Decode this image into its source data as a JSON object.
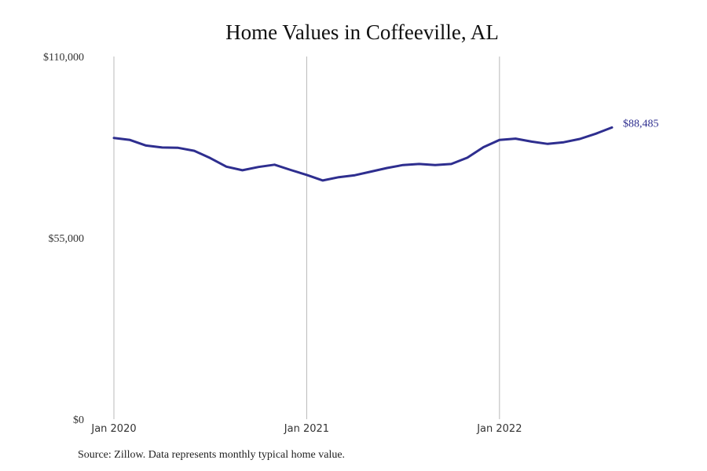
{
  "chart_data": {
    "type": "line",
    "title": "Home Values in Coffeeville, AL",
    "xlabel": "",
    "ylabel": "",
    "ylim": [
      0,
      110000
    ],
    "y_ticks": [
      {
        "value": 0,
        "label": "$0"
      },
      {
        "value": 55000,
        "label": "$55,000"
      },
      {
        "value": 110000,
        "label": "$110,000"
      }
    ],
    "x_ticks": [
      {
        "index": 0,
        "label": "Jan 2020"
      },
      {
        "index": 12,
        "label": "Jan 2021"
      },
      {
        "index": 24,
        "label": "Jan 2022"
      }
    ],
    "vertical_gridlines": true,
    "horizontal_gridlines": false,
    "x": [
      "2020-01",
      "2020-02",
      "2020-03",
      "2020-04",
      "2020-05",
      "2020-06",
      "2020-07",
      "2020-08",
      "2020-09",
      "2020-10",
      "2020-11",
      "2020-12",
      "2021-01",
      "2021-02",
      "2021-03",
      "2021-04",
      "2021-05",
      "2021-06",
      "2021-07",
      "2021-08",
      "2021-09",
      "2021-10",
      "2021-11",
      "2021-12",
      "2022-01",
      "2022-02",
      "2022-03",
      "2022-04",
      "2022-05",
      "2022-06",
      "2022-07",
      "2022-08"
    ],
    "series": [
      {
        "color": "#2e2e8f",
        "values": [
          85300,
          84700,
          83000,
          82400,
          82300,
          81400,
          79200,
          76600,
          75500,
          76500,
          77200,
          75600,
          74100,
          72400,
          73400,
          74000,
          75100,
          76200,
          77100,
          77400,
          77100,
          77400,
          79300,
          82500,
          84700,
          85100,
          84200,
          83500,
          84000,
          85000,
          86600,
          88485
        ]
      }
    ],
    "end_label": "$88,485",
    "source": "Source: Zillow. Data represents monthly typical home value."
  }
}
